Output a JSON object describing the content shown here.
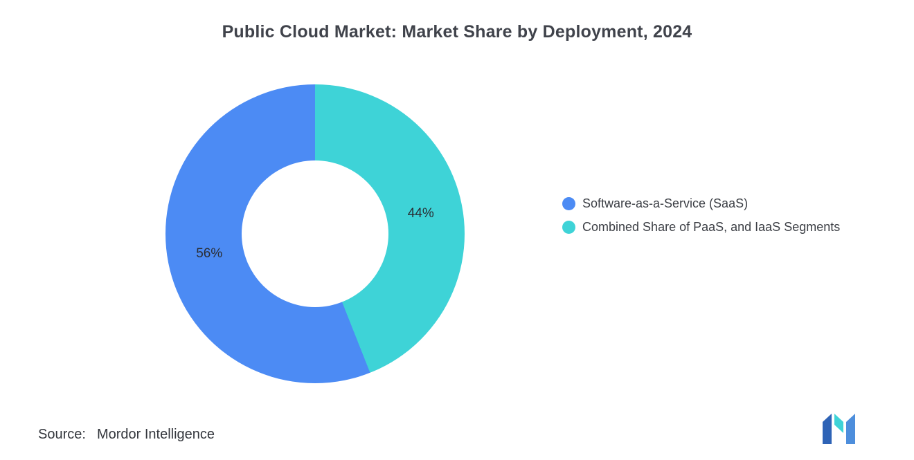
{
  "header": {
    "title": "Public Cloud Market: Market Share by Deployment, 2024"
  },
  "chart_data": {
    "type": "pie",
    "donut": true,
    "title": "Public Cloud Market: Market Share by Deployment, 2024",
    "categories": [
      "Software-as-a-Service (SaaS)",
      "Combined Share of PaaS, and IaaS Segments"
    ],
    "values": [
      56,
      44
    ],
    "labels": [
      "56%",
      "44%"
    ],
    "colors": [
      "#4C8BF4",
      "#3ED3D7"
    ],
    "draw_order": [
      1,
      0
    ],
    "start_angle_deg": 0,
    "legend_position": "right",
    "hole_ratio": 0.49
  },
  "legend": {
    "items": [
      {
        "label": "Software-as-a-Service (SaaS)"
      },
      {
        "label": "Combined Share of PaaS, and IaaS Segments"
      }
    ]
  },
  "footer": {
    "source_label": "Source:",
    "source_value": "Mordor Intelligence"
  },
  "logo": {
    "name": "mordor-intelligence-logo",
    "colors": {
      "left": "#2E63B6",
      "middle": "#3ED3D7",
      "right": "#4D8EDC"
    }
  }
}
